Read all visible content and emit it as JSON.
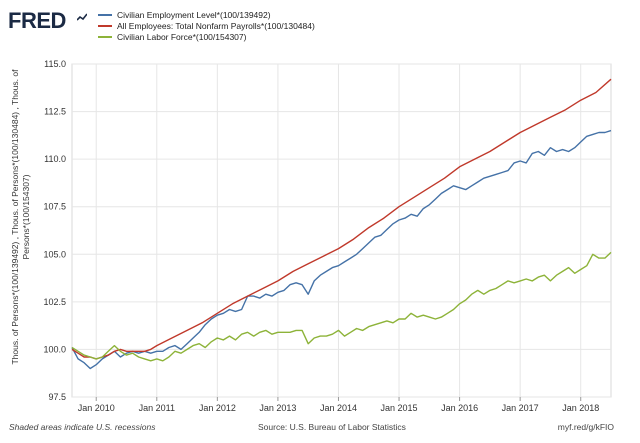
{
  "header": {
    "logo_text": "FRED",
    "logo_icon": "line-chart-icon"
  },
  "chart_data": {
    "type": "line",
    "title": "",
    "ylabel": "Thous. of Persons*(100/139492) , Thous. of Persons*(100/130484) , Thous. of Persons*(100/154307)",
    "xlabel": "",
    "ylim": [
      97.5,
      115.0
    ],
    "yticks": [
      "97.5",
      "100.0",
      "102.5",
      "105.0",
      "107.5",
      "110.0",
      "112.5",
      "115.0"
    ],
    "xlim": [
      2009.6,
      2018.5
    ],
    "xticks": [
      {
        "label": "Jan 2010",
        "x": 2010.0
      },
      {
        "label": "Jan 2011",
        "x": 2011.0
      },
      {
        "label": "Jan 2012",
        "x": 2012.0
      },
      {
        "label": "Jan 2013",
        "x": 2013.0
      },
      {
        "label": "Jan 2014",
        "x": 2014.0
      },
      {
        "label": "Jan 2015",
        "x": 2015.0
      },
      {
        "label": "Jan 2016",
        "x": 2016.0
      },
      {
        "label": "Jan 2017",
        "x": 2017.0
      },
      {
        "label": "Jan 2018",
        "x": 2018.0
      }
    ],
    "grid": true,
    "legend_position": "top-left",
    "series": [
      {
        "name": "Civilian Employment Level*(100/139492)",
        "color": "#4572a7",
        "x": [
          2009.6,
          2009.7,
          2009.8,
          2009.9,
          2010.0,
          2010.1,
          2010.2,
          2010.3,
          2010.4,
          2010.5,
          2010.6,
          2010.7,
          2010.8,
          2010.9,
          2011.0,
          2011.1,
          2011.2,
          2011.3,
          2011.4,
          2011.5,
          2011.6,
          2011.7,
          2011.8,
          2011.9,
          2012.0,
          2012.1,
          2012.2,
          2012.3,
          2012.4,
          2012.5,
          2012.6,
          2012.7,
          2012.8,
          2012.9,
          2013.0,
          2013.1,
          2013.2,
          2013.3,
          2013.4,
          2013.5,
          2013.6,
          2013.7,
          2013.8,
          2013.9,
          2014.0,
          2014.1,
          2014.2,
          2014.3,
          2014.4,
          2014.5,
          2014.6,
          2014.7,
          2014.8,
          2014.9,
          2015.0,
          2015.1,
          2015.2,
          2015.3,
          2015.4,
          2015.5,
          2015.6,
          2015.7,
          2015.8,
          2015.9,
          2016.0,
          2016.1,
          2016.2,
          2016.3,
          2016.4,
          2016.5,
          2016.6,
          2016.7,
          2016.8,
          2016.9,
          2017.0,
          2017.1,
          2017.2,
          2017.3,
          2017.4,
          2017.5,
          2017.6,
          2017.7,
          2017.8,
          2017.9,
          2018.0,
          2018.1,
          2018.2,
          2018.3,
          2018.4,
          2018.5
        ],
        "values": [
          100.1,
          99.5,
          99.3,
          99.0,
          99.2,
          99.5,
          99.7,
          99.9,
          99.6,
          99.8,
          99.9,
          99.8,
          99.9,
          99.8,
          99.9,
          99.9,
          100.1,
          100.2,
          100.0,
          100.3,
          100.6,
          100.9,
          101.3,
          101.6,
          101.8,
          101.9,
          102.1,
          102.0,
          102.1,
          102.8,
          102.8,
          102.7,
          102.9,
          102.8,
          103.0,
          103.1,
          103.4,
          103.5,
          103.4,
          102.9,
          103.6,
          103.9,
          104.1,
          104.3,
          104.4,
          104.6,
          104.8,
          105.0,
          105.3,
          105.6,
          105.9,
          106.0,
          106.3,
          106.6,
          106.8,
          106.9,
          107.1,
          107.0,
          107.4,
          107.6,
          107.9,
          108.2,
          108.4,
          108.6,
          108.5,
          108.4,
          108.6,
          108.8,
          109.0,
          109.1,
          109.2,
          109.3,
          109.4,
          109.8,
          109.9,
          109.8,
          110.3,
          110.4,
          110.2,
          110.6,
          110.4,
          110.5,
          110.4,
          110.6,
          110.9,
          111.2,
          111.3,
          111.4,
          111.4,
          111.5
        ]
      },
      {
        "name": "All Employees: Total Nonfarm Payrolls*(100/130484)",
        "color": "#c0392b",
        "x": [
          2009.6,
          2009.7,
          2009.8,
          2009.9,
          2010.0,
          2010.1,
          2010.2,
          2010.3,
          2010.4,
          2010.5,
          2010.6,
          2010.7,
          2010.8,
          2010.9,
          2011.0,
          2011.25,
          2011.5,
          2011.75,
          2012.0,
          2012.25,
          2012.5,
          2012.75,
          2013.0,
          2013.25,
          2013.5,
          2013.75,
          2014.0,
          2014.25,
          2014.5,
          2014.75,
          2015.0,
          2015.25,
          2015.5,
          2015.75,
          2016.0,
          2016.25,
          2016.5,
          2016.75,
          2017.0,
          2017.25,
          2017.5,
          2017.75,
          2018.0,
          2018.25,
          2018.5
        ],
        "values": [
          100.0,
          99.8,
          99.6,
          99.6,
          99.5,
          99.6,
          99.7,
          99.9,
          100.0,
          99.9,
          99.9,
          99.9,
          99.9,
          100.0,
          100.2,
          100.6,
          101.0,
          101.4,
          101.9,
          102.4,
          102.8,
          103.2,
          103.6,
          104.1,
          104.5,
          104.9,
          105.3,
          105.8,
          106.4,
          106.9,
          107.5,
          108.0,
          108.5,
          109.0,
          109.6,
          110.0,
          110.4,
          110.9,
          111.4,
          111.8,
          112.2,
          112.6,
          113.1,
          113.5,
          114.2
        ]
      },
      {
        "name": "Civilian Labor Force*(100/154307)",
        "color": "#8db339",
        "x": [
          2009.6,
          2009.7,
          2009.8,
          2009.9,
          2010.0,
          2010.1,
          2010.2,
          2010.3,
          2010.4,
          2010.5,
          2010.6,
          2010.7,
          2010.8,
          2010.9,
          2011.0,
          2011.1,
          2011.2,
          2011.3,
          2011.4,
          2011.5,
          2011.6,
          2011.7,
          2011.8,
          2011.9,
          2012.0,
          2012.1,
          2012.2,
          2012.3,
          2012.4,
          2012.5,
          2012.6,
          2012.7,
          2012.8,
          2012.9,
          2013.0,
          2013.1,
          2013.2,
          2013.3,
          2013.4,
          2013.5,
          2013.6,
          2013.7,
          2013.8,
          2013.9,
          2014.0,
          2014.1,
          2014.2,
          2014.3,
          2014.4,
          2014.5,
          2014.6,
          2014.7,
          2014.8,
          2014.9,
          2015.0,
          2015.1,
          2015.2,
          2015.3,
          2015.4,
          2015.5,
          2015.6,
          2015.7,
          2015.8,
          2015.9,
          2016.0,
          2016.1,
          2016.2,
          2016.3,
          2016.4,
          2016.5,
          2016.6,
          2016.7,
          2016.8,
          2016.9,
          2017.0,
          2017.1,
          2017.2,
          2017.3,
          2017.4,
          2017.5,
          2017.6,
          2017.7,
          2017.8,
          2017.9,
          2018.0,
          2018.1,
          2018.2,
          2018.3,
          2018.4,
          2018.5
        ],
        "values": [
          100.1,
          99.9,
          99.7,
          99.6,
          99.5,
          99.6,
          99.9,
          100.2,
          99.9,
          99.7,
          99.8,
          99.6,
          99.5,
          99.4,
          99.5,
          99.4,
          99.6,
          99.9,
          99.8,
          100.0,
          100.2,
          100.3,
          100.1,
          100.4,
          100.6,
          100.5,
          100.7,
          100.5,
          100.8,
          100.9,
          100.7,
          100.9,
          101.0,
          100.8,
          100.9,
          100.9,
          100.9,
          101.0,
          101.0,
          100.3,
          100.6,
          100.7,
          100.7,
          100.8,
          101.0,
          100.7,
          100.9,
          101.1,
          101.0,
          101.2,
          101.3,
          101.4,
          101.5,
          101.4,
          101.6,
          101.6,
          101.9,
          101.7,
          101.8,
          101.7,
          101.6,
          101.7,
          101.9,
          102.1,
          102.4,
          102.6,
          102.9,
          103.1,
          102.9,
          103.1,
          103.2,
          103.4,
          103.6,
          103.5,
          103.6,
          103.7,
          103.6,
          103.8,
          103.9,
          103.6,
          103.9,
          104.1,
          104.3,
          104.0,
          104.2,
          104.4,
          105.0,
          104.8,
          104.8,
          105.1
        ]
      }
    ]
  },
  "footer": {
    "recession_note": "Shaded areas indicate U.S. recessions",
    "source": "Source: U.S. Bureau of Labor Statistics",
    "url": "myf.red/g/kFIO"
  },
  "colors": {
    "logo": "#1b2a44",
    "grid": "#e6e6e6",
    "plot_border": "#d9d9d9"
  }
}
